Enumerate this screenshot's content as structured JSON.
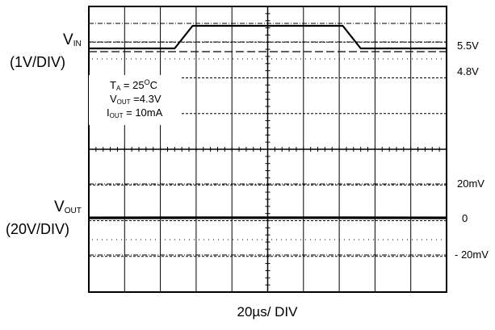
{
  "chart_data": [
    {
      "type": "line",
      "channel_label": "V",
      "channel_label_sub": "IN",
      "channel_scale": "(1V/DIV)",
      "level_labels": [
        {
          "text": "5.5V",
          "value": 5.5
        },
        {
          "text": "4.8V",
          "value": 4.8
        }
      ],
      "annotations": {
        "ta": {
          "text": "T",
          "sub": "A",
          "rest": " = 25",
          "sup": "O",
          "unit": "C"
        },
        "vout": {
          "text": "V",
          "sub": "OUT",
          "rest": " =4.3V"
        },
        "iout": {
          "text": "I",
          "sub": "OUT",
          "rest": " = 10mA"
        }
      },
      "series": [
        {
          "x": [
            0,
            24,
            29,
            71,
            76,
            100
          ],
          "values": [
            4.8,
            4.8,
            5.5,
            5.5,
            4.8,
            4.8
          ]
        }
      ],
      "xlim": [
        0,
        200
      ],
      "ylim": [
        4.55,
        5.8
      ],
      "grid": true
    },
    {
      "type": "line",
      "channel_label": "V",
      "channel_label_sub": "OUT",
      "channel_scale": "(20V/DIV)",
      "level_labels": [
        {
          "text": "20mV",
          "value": 20
        },
        {
          "text": "0",
          "value": 0
        },
        {
          "text": "- 20mV",
          "value": -20
        }
      ],
      "series": [
        {
          "x": [
            0,
            24,
            30,
            50,
            70,
            76,
            100
          ],
          "values": [
            0,
            0.3,
            0.8,
            0.9,
            0.8,
            0.3,
            0
          ]
        }
      ],
      "xlim": [
        0,
        200
      ],
      "ylim": [
        -40,
        40
      ],
      "grid": true
    }
  ],
  "xscale": "20µs/ DIV"
}
